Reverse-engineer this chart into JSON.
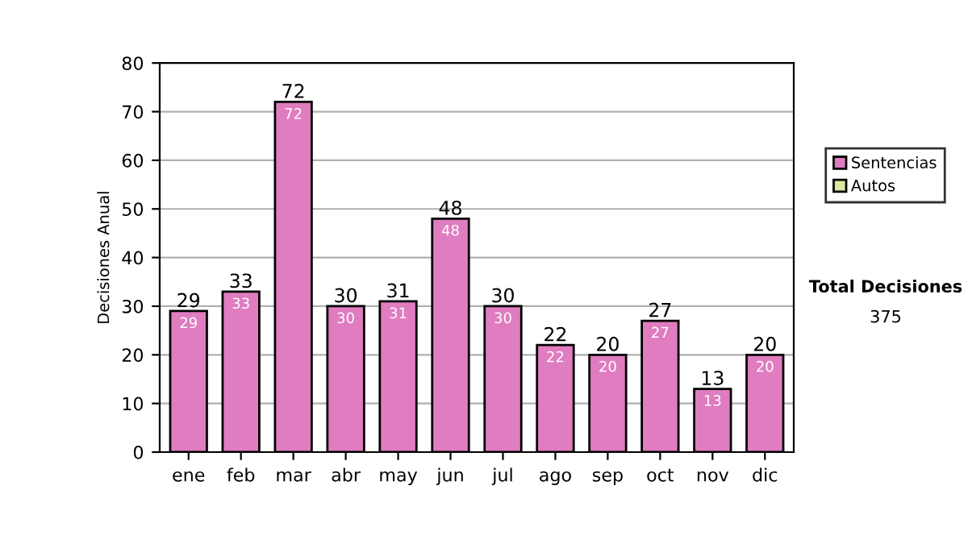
{
  "chart_data": {
    "type": "bar",
    "ylabel": "Decisiones Anual",
    "categories": [
      "ene",
      "feb",
      "mar",
      "abr",
      "may",
      "jun",
      "jul",
      "ago",
      "sep",
      "oct",
      "nov",
      "dic"
    ],
    "series": [
      {
        "name": "Sentencias",
        "color": "#e07cc0",
        "values": [
          29,
          33,
          72,
          30,
          31,
          48,
          30,
          22,
          20,
          27,
          13,
          20
        ]
      },
      {
        "name": "Autos",
        "color": "#d8e8a0",
        "values": [
          null,
          null,
          null,
          null,
          null,
          null,
          null,
          null,
          null,
          null,
          null,
          null
        ]
      }
    ],
    "ylim": [
      0,
      80
    ],
    "yticks": [
      0,
      10,
      20,
      30,
      40,
      50,
      60,
      70,
      80
    ],
    "grid": "y",
    "legend": "right",
    "data_labels": true,
    "annotations": [
      "Total Decisiones",
      "375",
      {
        "text": "29",
        "x": "ene",
        "y": 29
      },
      {
        "text": "33",
        "x": "feb",
        "y": 33
      },
      {
        "text": "72",
        "x": "mar",
        "y": 72
      },
      {
        "text": "30",
        "x": "abr",
        "y": 30
      },
      {
        "text": "31",
        "x": "may",
        "y": 31
      },
      {
        "text": "48",
        "x": "jun",
        "y": 48
      },
      {
        "text": "30",
        "x": "jul",
        "y": 30
      },
      {
        "text": "22",
        "x": "ago",
        "y": 22
      },
      {
        "text": "20",
        "x": "sep",
        "y": 20
      },
      {
        "text": "27",
        "x": "oct",
        "y": 27
      },
      {
        "text": "13",
        "x": "nov",
        "y": 13
      },
      {
        "text": "20",
        "x": "dic",
        "y": 20
      }
    ]
  }
}
